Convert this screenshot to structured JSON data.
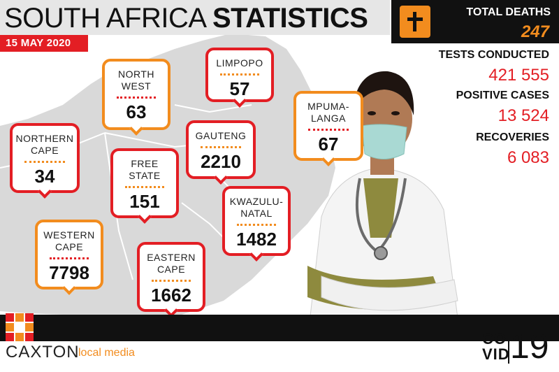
{
  "header": {
    "title_light": "SOUTH AFRICA ",
    "title_bold": "STATISTICS",
    "date": "15 MAY 2020"
  },
  "deaths": {
    "label": "TOTAL DEATHS",
    "value": "247",
    "icon": "cross-icon"
  },
  "stats": [
    {
      "label": "TESTS CONDUCTED",
      "value": "421 555"
    },
    {
      "label": "POSITIVE CASES",
      "value": "13 524"
    },
    {
      "label": "RECOVERIES",
      "value": "6 083"
    }
  ],
  "provinces": {
    "limpopo": {
      "name": "LIMPOPO",
      "value": "57"
    },
    "north_west": {
      "name_1": "NORTH",
      "name_2": "WEST",
      "value": "63"
    },
    "mpumalanga": {
      "name_1": "MPUMA-",
      "name_2": "LANGA",
      "value": "67"
    },
    "northern_cape": {
      "name_1": "NORTHERN",
      "name_2": "CAPE",
      "value": "34"
    },
    "gauteng": {
      "name": "GAUTENG",
      "value": "2210"
    },
    "free_state": {
      "name_1": "FREE",
      "name_2": "STATE",
      "value": "151"
    },
    "kwazulu_natal": {
      "name_1": "KWAZULU-",
      "name_2": "NATAL",
      "value": "1482"
    },
    "western_cape": {
      "name_1": "WESTERN",
      "name_2": "CAPE",
      "value": "7798"
    },
    "eastern_cape": {
      "name_1": "EASTERN",
      "name_2": "CAPE",
      "value": "1662"
    }
  },
  "branding": {
    "caxton": "CAXTON",
    "local_media": "local media",
    "covid_1": "CO",
    "covid_2": "VID",
    "covid_num": "19"
  },
  "colors": {
    "red": "#e31e24",
    "orange": "#f28c1e",
    "dark": "#111111",
    "map_gray": "#d9d9d9"
  }
}
